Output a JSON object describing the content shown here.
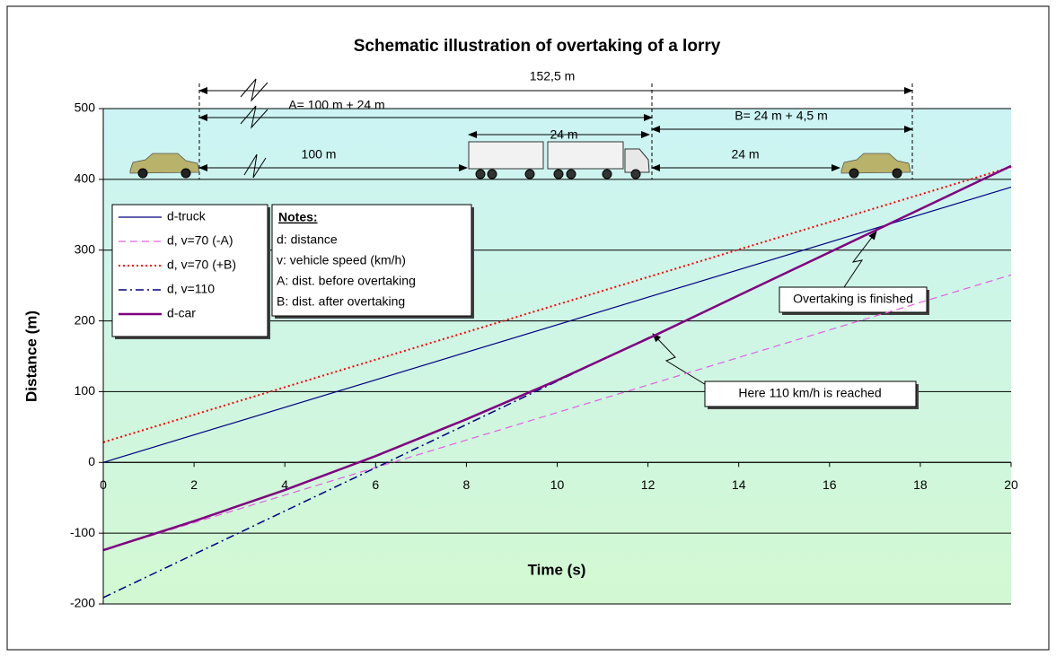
{
  "chart_data": {
    "type": "line",
    "title": "Schematic illustration of overtaking of a lorry",
    "x_label": "Time (s)",
    "y_label": "Distance (m)",
    "xlim": [
      0,
      20
    ],
    "ylim": [
      -200,
      500
    ],
    "xticks": [
      0,
      2,
      4,
      6,
      8,
      10,
      12,
      14,
      16,
      18,
      20
    ],
    "yticks": [
      -200,
      -100,
      0,
      100,
      200,
      300,
      400,
      500
    ],
    "grid": true,
    "series": [
      {
        "name": "d-truck",
        "color": "#000080",
        "style": "solid",
        "width": 1.2,
        "x": [
          0,
          20
        ],
        "values": [
          0,
          389
        ]
      },
      {
        "name": "d, v=70 (-A)",
        "color": "#e060e0",
        "style": "dashed",
        "width": 1.2,
        "x": [
          0,
          20
        ],
        "values": [
          -124,
          265
        ]
      },
      {
        "name": "d, v=70 (+B)",
        "color": "#ff0000",
        "style": "dotted",
        "width": 2,
        "x": [
          0,
          20
        ],
        "values": [
          28.5,
          417.5
        ]
      },
      {
        "name": "d, v=110",
        "color": "#000080",
        "style": "dashdot",
        "width": 1.5,
        "x": [
          0,
          12.2
        ],
        "values": [
          -191,
          182
        ]
      },
      {
        "name": "d-car",
        "color": "#800080",
        "style": "solid",
        "width": 2.5,
        "x": [
          0,
          2,
          4,
          6,
          8,
          10,
          12.2,
          14,
          16,
          18,
          20
        ],
        "values": [
          -124,
          -83,
          -39,
          9,
          61,
          116,
          181,
          236,
          297,
          358,
          419
        ]
      }
    ],
    "notes": {
      "heading": "Notes:",
      "lines": [
        "d: distance",
        "v: vehicle speed (km/h)",
        "A: dist. before overtaking",
        "B: dist. after overtaking"
      ]
    },
    "annotations": [
      "Overtaking is finished",
      "Here 110 km/h is reached",
      "152,5 m",
      "A= 100 m + 24 m",
      "B= 24 m + 4,5 m",
      "24 m",
      "100 m",
      "24 m"
    ]
  }
}
